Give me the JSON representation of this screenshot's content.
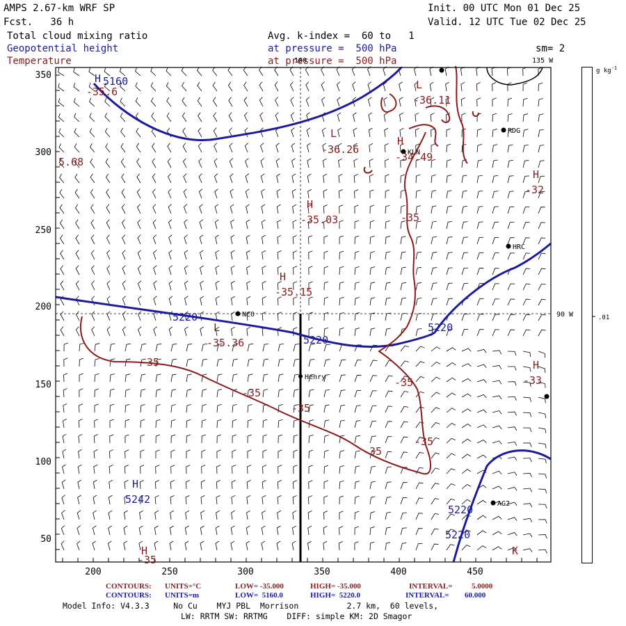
{
  "header": {
    "model": "AMPS 2.67-km WRF SP",
    "forecast": "Fcst.   36 h",
    "init": "Init. 00 UTC Mon 01 Dec 25",
    "valid": "Valid. 12 UTC Tue 02 Dec 25",
    "field1": "Total cloud mixing ratio",
    "field2": "Geopotential height",
    "field3": "Temperature",
    "avg": "Avg. k-index =  60 to   1",
    "pressure1": "at pressure =  500 hPa",
    "pressure2": "at pressure =  500 hPa",
    "sm": "sm= 2"
  },
  "map": {
    "x_ticks": [
      "200",
      "250",
      "300",
      "350",
      "400",
      "450"
    ],
    "y_ticks": [
      "350",
      "300",
      "250",
      "200",
      "150",
      "100",
      "50"
    ],
    "meridian_labels": {
      "top": "180",
      "top_right": "135 W",
      "right": "90 W"
    },
    "stations": [
      {
        "name": "KLN"
      },
      {
        "name": "RDG"
      },
      {
        "name": "HRC"
      },
      {
        "name": "NCO"
      },
      {
        "name": "Henry"
      },
      {
        "name": "AG2"
      },
      {
        "name": ""
      },
      {
        "name": ""
      }
    ],
    "height_labels": [
      {
        "text": "5160",
        "kind": "value"
      },
      {
        "text": "5220",
        "kind": "value"
      },
      {
        "text": "5220",
        "kind": "value"
      },
      {
        "text": "5220",
        "kind": "value"
      },
      {
        "text": "5220",
        "kind": "value"
      },
      {
        "text": "5220",
        "kind": "value"
      },
      {
        "text": "5242",
        "kind": "value"
      }
    ],
    "temp_labels": [
      {
        "text": "-35.6"
      },
      {
        "text": "5.68"
      },
      {
        "text": "-36.11"
      },
      {
        "text": "-36.26"
      },
      {
        "text": "-34.49"
      },
      {
        "text": "-32"
      },
      {
        "text": "-35"
      },
      {
        "text": "-35.03"
      },
      {
        "text": "-35.15"
      },
      {
        "text": "-35.36"
      },
      {
        "text": "-35"
      },
      {
        "text": "-35"
      },
      {
        "text": "-35"
      },
      {
        "text": "-35"
      },
      {
        "text": "-35"
      },
      {
        "text": "-35"
      },
      {
        "text": "-35"
      },
      {
        "text": "-33"
      }
    ],
    "extrema_markers": [
      {
        "letter": "H"
      },
      {
        "letter": "L"
      },
      {
        "letter": "L"
      },
      {
        "letter": "H"
      },
      {
        "letter": "H"
      },
      {
        "letter": "H"
      },
      {
        "letter": "H"
      },
      {
        "letter": "L"
      },
      {
        "letter": "H"
      },
      {
        "letter": "H"
      },
      {
        "letter": "H"
      },
      {
        "letter": "K"
      }
    ]
  },
  "colorbar": {
    "units": "g kg",
    "units_sup": "-1",
    "tick": ".01"
  },
  "footer": {
    "contours1": {
      "label": "CONTOURS:",
      "units": "UNITS=°C",
      "low": "LOW= -35.000",
      "high": "HIGH= -35.000",
      "interval": "INTERVAL=",
      "interval_val": "5.0000"
    },
    "contours2": {
      "label": "CONTOURS:",
      "units": "UNITS=m",
      "low": "LOW=  5160.0",
      "high": "HIGH=  5220.0",
      "interval": "INTERVAL=",
      "interval_val": "60.000"
    },
    "info1": "Model Info: V4.3.3     No Cu    MYJ PBL  Morrison          2.7 km,  60 levels,",
    "info2": "LW: RRTM SW: RRTMG    DIFF: simple KM: 2D Smagor"
  },
  "colors": {
    "height": "#1a1a9e",
    "temperature": "#8b1a1a",
    "frame": "#000000"
  }
}
